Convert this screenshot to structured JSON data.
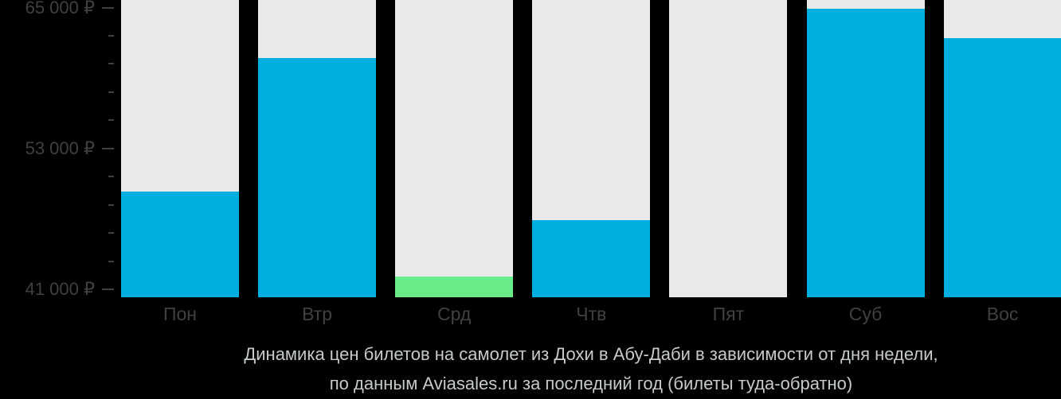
{
  "chart_data": {
    "type": "bar",
    "title": "",
    "categories": [
      "Пон",
      "Втр",
      "Срд",
      "Чтв",
      "Пят",
      "Суб",
      "Вос"
    ],
    "values": [
      49300,
      60700,
      42100,
      46900,
      null,
      64900,
      62400
    ],
    "currency": "₽",
    "ylim": [
      41000,
      65000
    ],
    "y_ticks": [
      {
        "value": 65000,
        "label": "65 000 ₽"
      },
      {
        "value": 53000,
        "label": "53 000 ₽"
      },
      {
        "value": 41000,
        "label": "41 000 ₽"
      }
    ],
    "minor_ticks_between_majors": 4,
    "grid": false,
    "legend": null,
    "colors": {
      "bar_default": "#00afe0",
      "bar_min_highlight": "#68ec89",
      "track_background": "#e9e9e9",
      "axis_text": "#3e4043",
      "page_background": "#000000",
      "caption_text": "#c5cbc7"
    }
  },
  "caption": {
    "line1": "Динамика цен билетов на самолет из Дохи в Абу-Даби в зависимости от дня недели,",
    "line2": "по данным Aviasales.ru за последний год (билеты туда-обратно)"
  }
}
